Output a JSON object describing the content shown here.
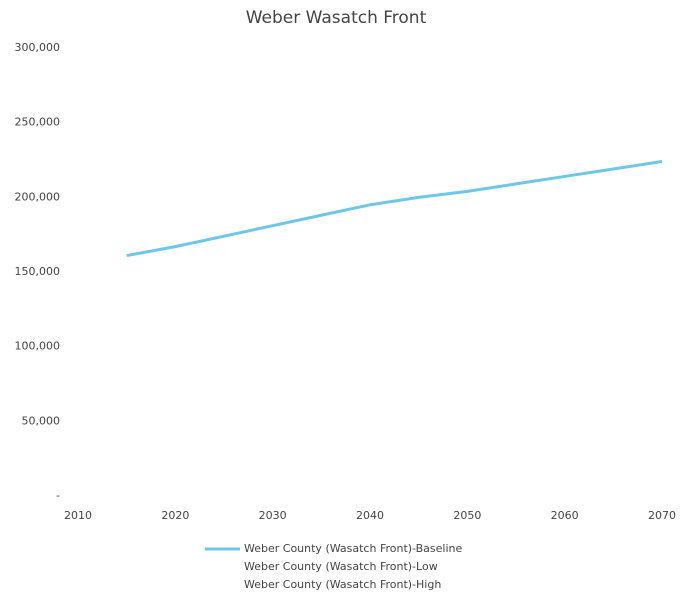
{
  "chart_data": {
    "type": "line",
    "title": "Weber Wasatch Front",
    "x": [
      2015,
      2020,
      2025,
      2030,
      2035,
      2040,
      2045,
      2050,
      2055,
      2060,
      2065,
      2070
    ],
    "series": [
      {
        "name": "Weber County (Wasatch Front)-Baseline",
        "color": "#6ec6e8",
        "values": [
          161000,
          167000,
          174000,
          181000,
          188000,
          195000,
          200000,
          204000,
          209000,
          214000,
          219000,
          224000
        ]
      },
      {
        "name": "Weber County (Wasatch Front)-Low",
        "color": "#ffffff",
        "values": [
          null,
          null,
          null,
          null,
          null,
          null,
          null,
          null,
          null,
          null,
          null,
          null
        ]
      },
      {
        "name": "Weber County (Wasatch Front)-High",
        "color": "#ffffff",
        "values": [
          null,
          null,
          null,
          null,
          null,
          null,
          null,
          null,
          null,
          null,
          null,
          null
        ]
      }
    ],
    "xlim": [
      2010,
      2070
    ],
    "xticks": [
      2010,
      2020,
      2030,
      2040,
      2050,
      2060,
      2070
    ],
    "ylim": [
      0,
      300000
    ],
    "yticks": [
      {
        "value": 0,
        "label": "-"
      },
      {
        "value": 50000,
        "label": "50,000"
      },
      {
        "value": 100000,
        "label": "100,000"
      },
      {
        "value": 150000,
        "label": "150,000"
      },
      {
        "value": 200000,
        "label": "200,000"
      },
      {
        "value": 250000,
        "label": "250,000"
      },
      {
        "value": 300000,
        "label": "300,000"
      }
    ],
    "grid": false,
    "legend": "bottom"
  }
}
